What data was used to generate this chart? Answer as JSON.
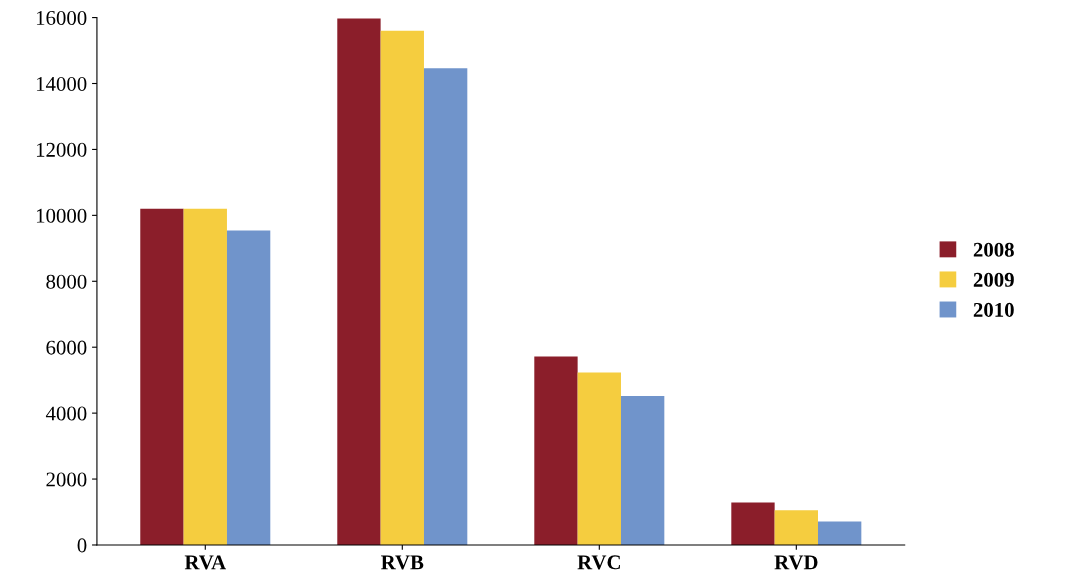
{
  "chart_data": {
    "type": "bar",
    "categories": [
      "RVA",
      "RVB",
      "RVC",
      "RVD"
    ],
    "series": [
      {
        "name": "2008",
        "color": "#8b1e2a",
        "values": [
          10200,
          15970,
          5720,
          1290
        ]
      },
      {
        "name": "2009",
        "color": "#f5cd3f",
        "values": [
          10200,
          15600,
          5230,
          1050
        ]
      },
      {
        "name": "2010",
        "color": "#7094cb",
        "values": [
          9540,
          14460,
          4520,
          710
        ]
      }
    ],
    "ylim": [
      0,
      16000
    ],
    "yticks": [
      0,
      2000,
      4000,
      6000,
      8000,
      10000,
      12000,
      14000,
      16000
    ],
    "grid": false,
    "legend": "right"
  }
}
